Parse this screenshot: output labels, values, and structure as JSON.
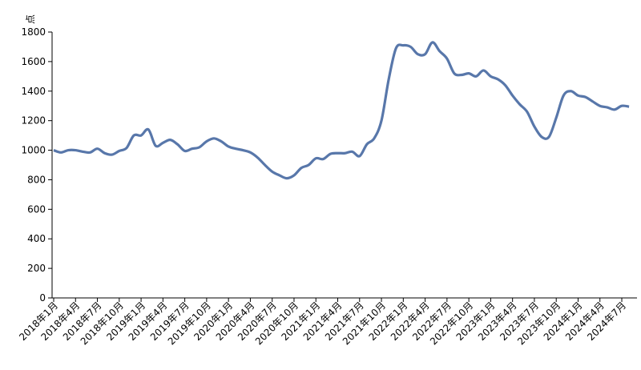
{
  "chart_data": {
    "type": "line",
    "y_label": "点",
    "categories": [
      "2018年1月",
      null,
      null,
      "2018年4月",
      null,
      null,
      "2018年7月",
      null,
      null,
      "2018年10月",
      null,
      null,
      "2019年1月",
      null,
      null,
      "2019年4月",
      null,
      null,
      "2019年7月",
      null,
      null,
      "2019年10月",
      null,
      null,
      "2020年1月",
      null,
      null,
      "2020年4月",
      null,
      null,
      "2020年7月",
      null,
      null,
      "2020年10月",
      null,
      null,
      "2021年1月",
      null,
      null,
      "2021年4月",
      null,
      null,
      "2021年7月",
      null,
      null,
      "2021年10月",
      null,
      null,
      "2022年1月",
      null,
      null,
      "2022年4月",
      null,
      null,
      "2022年7月",
      null,
      null,
      "2022年10月",
      null,
      null,
      "2023年1月",
      null,
      null,
      "2023年4月",
      null,
      null,
      "2023年7月",
      null,
      null,
      "2023年10月",
      null,
      null,
      "2024年1月",
      null,
      null,
      "2024年4月",
      null,
      null,
      "2024年7月",
      null
    ],
    "series": [
      {
        "color": "#5877aa",
        "values": [
          1000,
          985,
          1000,
          1000,
          990,
          985,
          1010,
          980,
          970,
          995,
          1015,
          1100,
          1100,
          1140,
          1030,
          1050,
          1070,
          1040,
          995,
          1010,
          1020,
          1060,
          1080,
          1060,
          1025,
          1010,
          1000,
          985,
          950,
          900,
          855,
          830,
          810,
          830,
          880,
          900,
          945,
          940,
          975,
          980,
          980,
          990,
          960,
          1040,
          1080,
          1200,
          1480,
          1690,
          1710,
          1700,
          1650,
          1650,
          1730,
          1670,
          1620,
          1520,
          1510,
          1520,
          1500,
          1540,
          1500,
          1480,
          1440,
          1370,
          1310,
          1260,
          1160,
          1090,
          1090,
          1220,
          1370,
          1400,
          1370,
          1360,
          1330,
          1300,
          1290,
          1275,
          1300,
          1295
        ]
      }
    ],
    "ylim": [
      0,
      1800
    ],
    "yticks": [
      0,
      200,
      400,
      600,
      800,
      1000,
      1200,
      1400,
      1600,
      1800
    ],
    "grid": false
  }
}
